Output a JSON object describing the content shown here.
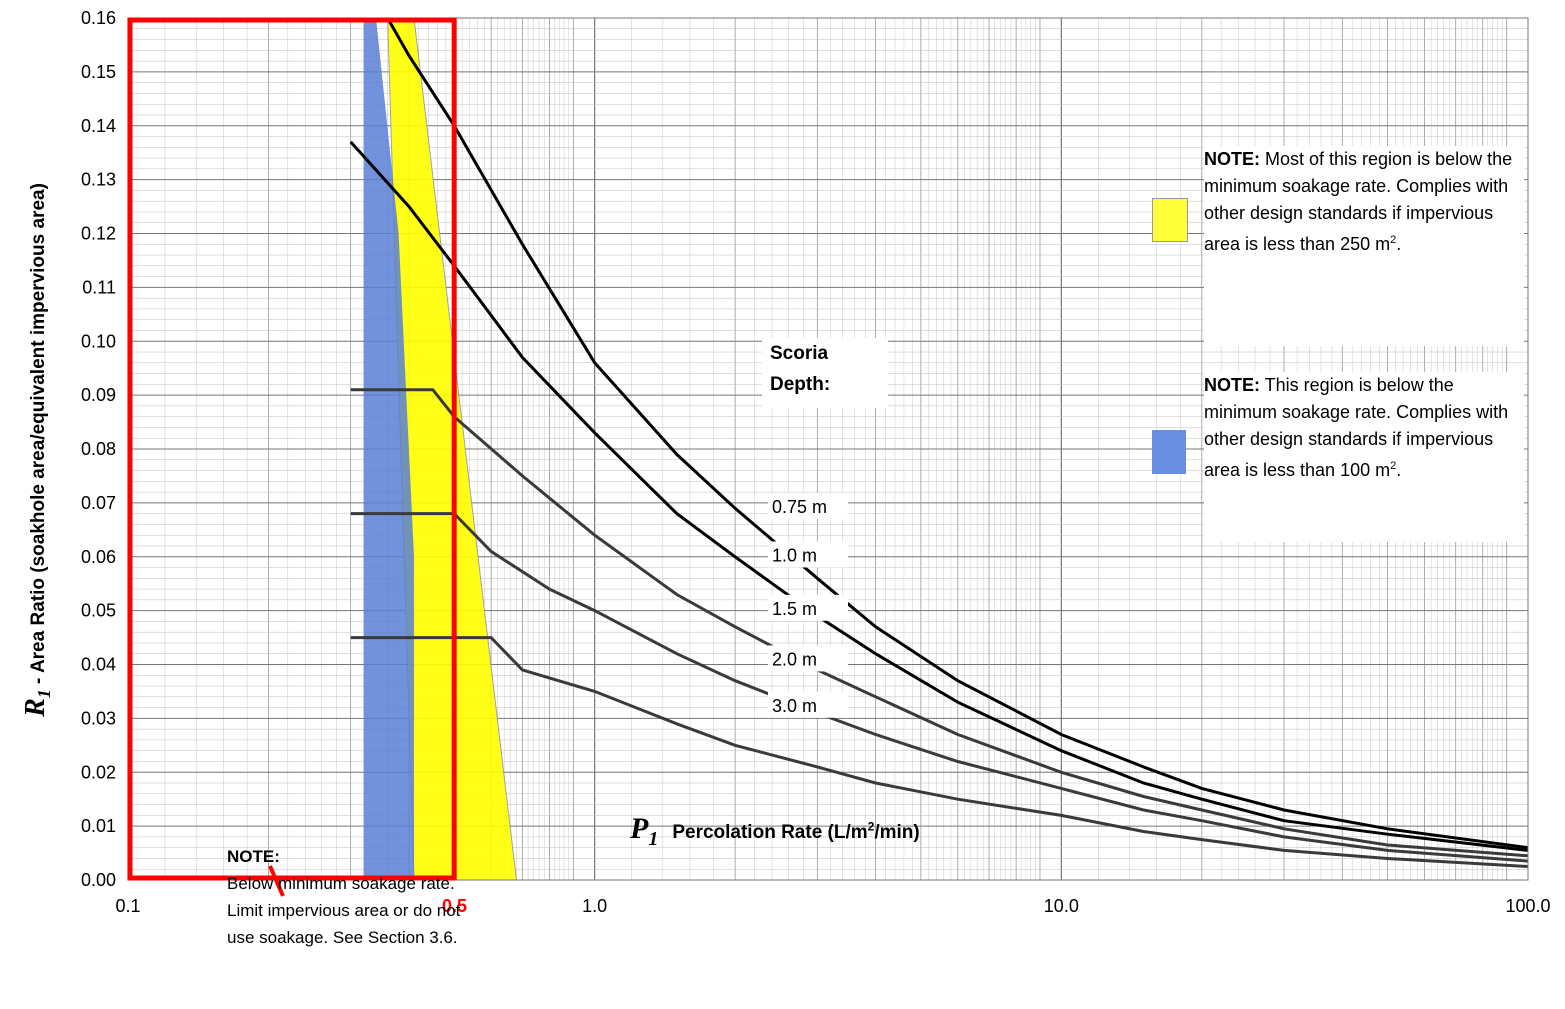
{
  "chart_data": {
    "type": "line",
    "x_scale": "log",
    "xlim": [
      0.1,
      100
    ],
    "ylim": [
      0,
      0.16
    ],
    "x_ticks": [
      "0.1",
      "1.0",
      "10.0",
      "100.0"
    ],
    "y_ticks": [
      "0.00",
      "0.01",
      "0.02",
      "0.03",
      "0.04",
      "0.05",
      "0.06",
      "0.07",
      "0.08",
      "0.09",
      "0.10",
      "0.11",
      "0.12",
      "0.13",
      "0.14",
      "0.15",
      "0.16"
    ],
    "grid": true,
    "x_label_symbol": "P",
    "x_label_symbol_sub": "1",
    "x_label_text": "Percolation Rate (L/m",
    "x_label_sup": "2",
    "x_label_tail": "/min)",
    "y_label_symbol": "R",
    "y_label_symbol_sub": "1",
    "y_label_text": " - Area Ratio (soakhole area/equivalent impervious area)",
    "series": [
      {
        "name": "0.75 m",
        "color": "#000000",
        "x": [
          0.36,
          0.4,
          0.5,
          0.7,
          1.0,
          1.5,
          2.0,
          3.0,
          4.0,
          6.0,
          10.0,
          15.0,
          20.0,
          30.0,
          50.0,
          100.0
        ],
        "y": [
          0.16,
          0.153,
          0.14,
          0.118,
          0.096,
          0.079,
          0.069,
          0.056,
          0.047,
          0.037,
          0.027,
          0.021,
          0.017,
          0.013,
          0.0095,
          0.006
        ]
      },
      {
        "name": "1.0 m",
        "color": "#000000",
        "x": [
          0.3,
          0.4,
          0.5,
          0.7,
          1.0,
          1.5,
          2.0,
          3.0,
          4.0,
          6.0,
          10.0,
          15.0,
          20.0,
          30.0,
          50.0,
          100.0
        ],
        "y": [
          0.137,
          0.125,
          0.114,
          0.097,
          0.083,
          0.068,
          0.06,
          0.049,
          0.042,
          0.033,
          0.024,
          0.018,
          0.015,
          0.011,
          0.0085,
          0.0055
        ]
      },
      {
        "name": "1.5 m",
        "color": "#3a3a3a",
        "x": [
          0.3,
          0.45,
          0.5,
          0.7,
          1.0,
          1.5,
          2.0,
          3.0,
          4.0,
          6.0,
          10.0,
          15.0,
          20.0,
          30.0,
          50.0,
          100.0
        ],
        "y": [
          0.091,
          0.091,
          0.086,
          0.075,
          0.064,
          0.053,
          0.047,
          0.039,
          0.034,
          0.027,
          0.02,
          0.0155,
          0.013,
          0.0095,
          0.0065,
          0.0045
        ]
      },
      {
        "name": "2.0 m",
        "color": "#3a3a3a",
        "x": [
          0.3,
          0.5,
          0.6,
          0.8,
          1.0,
          1.5,
          2.0,
          3.0,
          4.0,
          6.0,
          10.0,
          15.0,
          20.0,
          30.0,
          50.0,
          100.0
        ],
        "y": [
          0.068,
          0.068,
          0.061,
          0.054,
          0.05,
          0.042,
          0.037,
          0.031,
          0.027,
          0.022,
          0.017,
          0.013,
          0.011,
          0.008,
          0.0055,
          0.0035
        ]
      },
      {
        "name": "3.0 m",
        "color": "#3a3a3a",
        "x": [
          0.3,
          0.6,
          0.7,
          1.0,
          1.5,
          2.0,
          3.0,
          4.0,
          6.0,
          10.0,
          15.0,
          20.0,
          30.0,
          50.0,
          100.0
        ],
        "y": [
          0.045,
          0.045,
          0.039,
          0.035,
          0.029,
          0.025,
          0.021,
          0.018,
          0.015,
          0.012,
          0.009,
          0.0075,
          0.0055,
          0.004,
          0.0025
        ]
      }
    ],
    "regions": [
      {
        "name": "yellow",
        "color": "#ffff00",
        "x": [
          0.38,
          0.41,
          0.68,
          0.52,
          0.41,
          0.36
        ],
        "y": [
          0.16,
          0.16,
          0.0,
          0.0,
          0.0,
          0.16
        ]
      },
      {
        "name": "blue",
        "color": "#5b7fd6",
        "x": [
          0.3,
          0.34,
          0.38,
          0.41,
          0.41,
          0.32,
          0.32
        ],
        "y": [
          0.16,
          0.16,
          0.12,
          0.06,
          0.0,
          0.0,
          0.16
        ]
      }
    ],
    "red_box": {
      "x": [
        0.1,
        0.5
      ],
      "y": [
        0.0,
        0.16
      ],
      "color": "#ff0000"
    },
    "red_label": "0.5",
    "scoria_header": [
      "Scoria",
      "Depth:"
    ],
    "depth_labels": [
      "0.75 m",
      "1.0 m",
      "1.5 m",
      "2.0 m",
      "3.0 m"
    ]
  },
  "notes": {
    "yellow_note_bold": "NOTE:",
    "yellow_note_text": " Most of this region is below the minimum soakage rate. Complies with other design standards if impervious area is less than 250 m",
    "yellow_note_sup": "2",
    "yellow_note_end": ".",
    "blue_note_bold": "NOTE:",
    "blue_note_text": " This region is below the minimum soakage rate. Complies with other design standards if impervious area is less than 100 m",
    "blue_note_sup": "2",
    "blue_note_end": ".",
    "low_note_bold": "NOTE:",
    "low_note_lines": [
      "Below minimum soakage rate.",
      "Limit impervious area or do not",
      "use soakage. See Section 3.6."
    ]
  }
}
